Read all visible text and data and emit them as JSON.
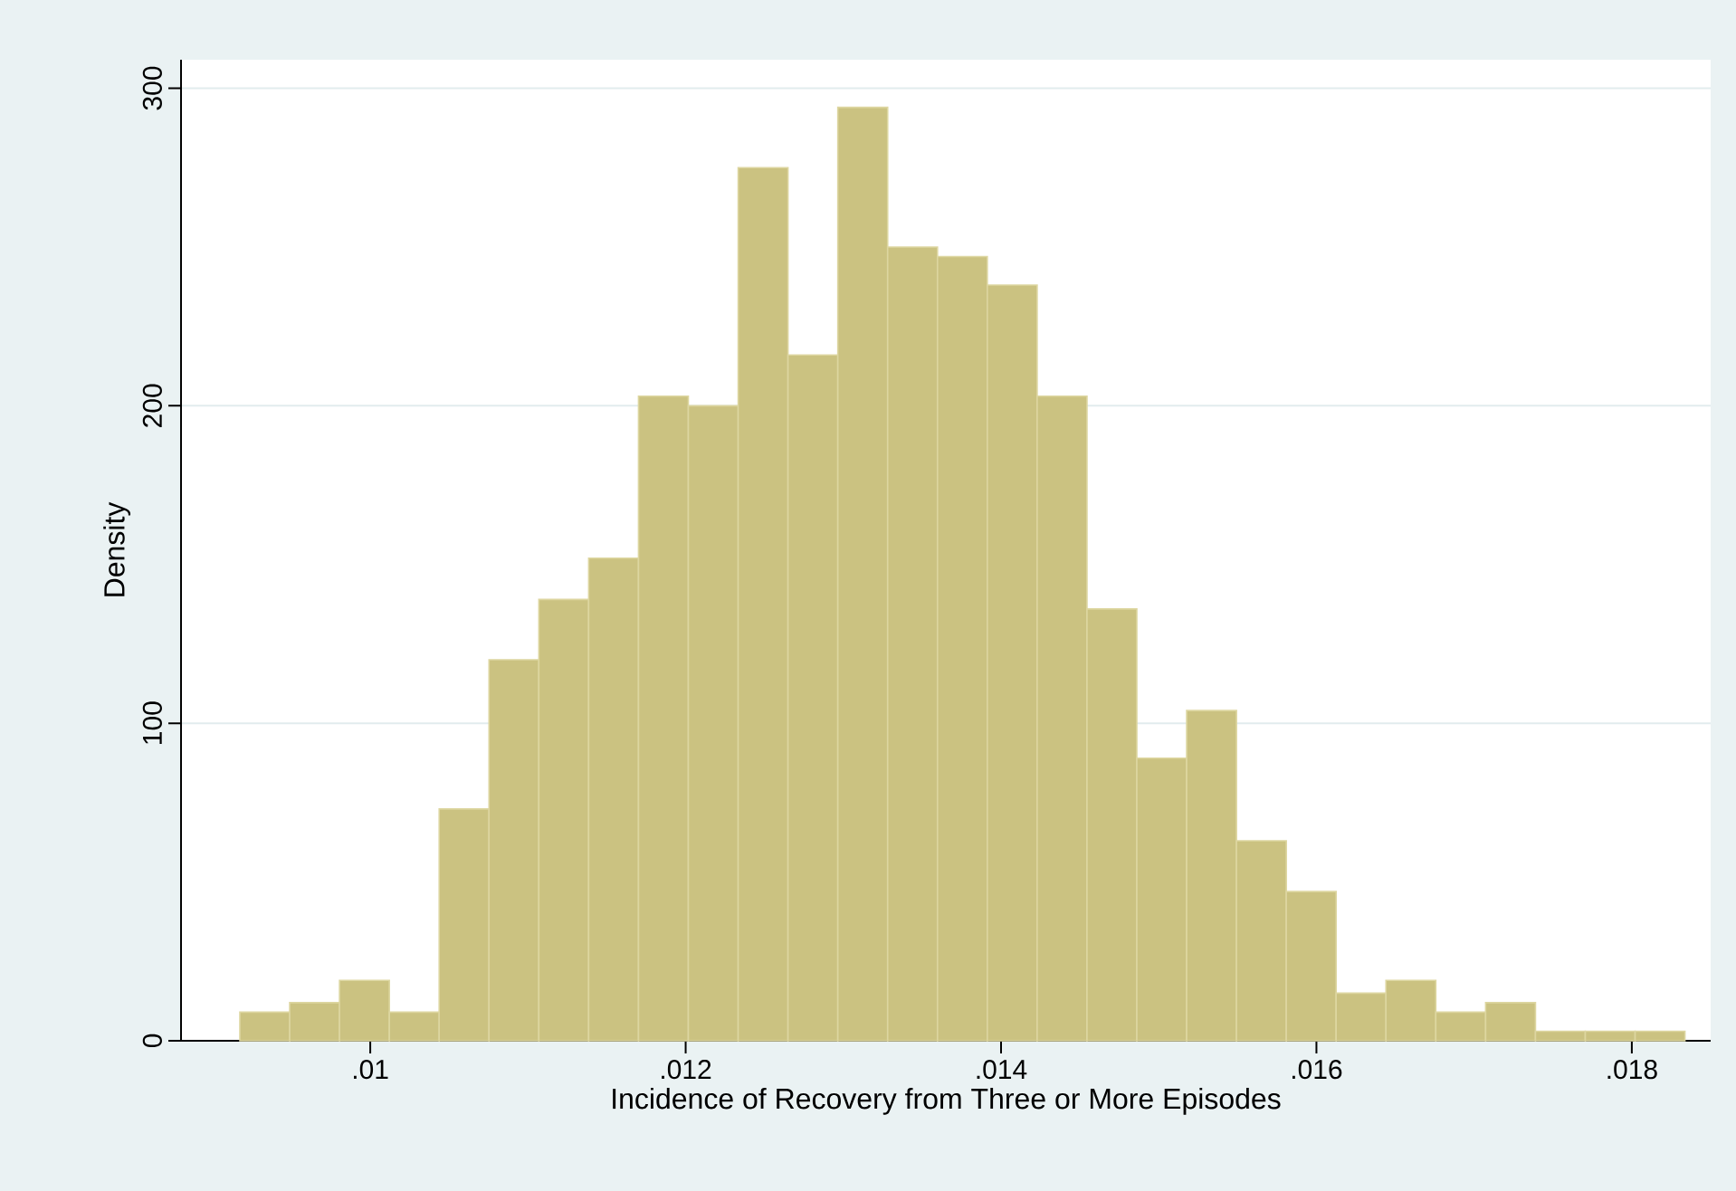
{
  "chart_data": {
    "type": "histogram",
    "xlabel": "Incidence of Recovery from Three or More Episodes",
    "ylabel": "Density",
    "bins": [
      0.009173,
      0.009489,
      0.009805,
      0.010121,
      0.010437,
      0.010753,
      0.011069,
      0.011385,
      0.011701,
      0.012017,
      0.012333,
      0.012649,
      0.012965,
      0.013281,
      0.013597,
      0.013913,
      0.014229,
      0.014545,
      0.014861,
      0.015177,
      0.015493,
      0.015809,
      0.016125,
      0.016441,
      0.016757,
      0.017073,
      0.017389,
      0.017705,
      0.018021,
      0.018337
    ],
    "values": [
      9,
      12,
      19,
      9,
      73,
      120,
      139,
      152,
      203,
      200,
      275,
      216,
      294,
      250,
      247,
      238,
      203,
      136,
      89,
      104,
      63,
      47,
      15,
      19,
      9,
      12,
      3,
      3,
      3
    ],
    "color": "#cbc281",
    "xlim": [
      0.0088,
      0.0185
    ],
    "ylim": [
      0,
      309
    ],
    "xticks": [
      {
        "value": 0.01,
        "label": ".01"
      },
      {
        "value": 0.012,
        "label": ".012"
      },
      {
        "value": 0.014,
        "label": ".014"
      },
      {
        "value": 0.016,
        "label": ".016"
      },
      {
        "value": 0.018,
        "label": ".018"
      }
    ],
    "yticks": [
      0,
      100,
      200,
      300
    ],
    "grid": "y"
  }
}
